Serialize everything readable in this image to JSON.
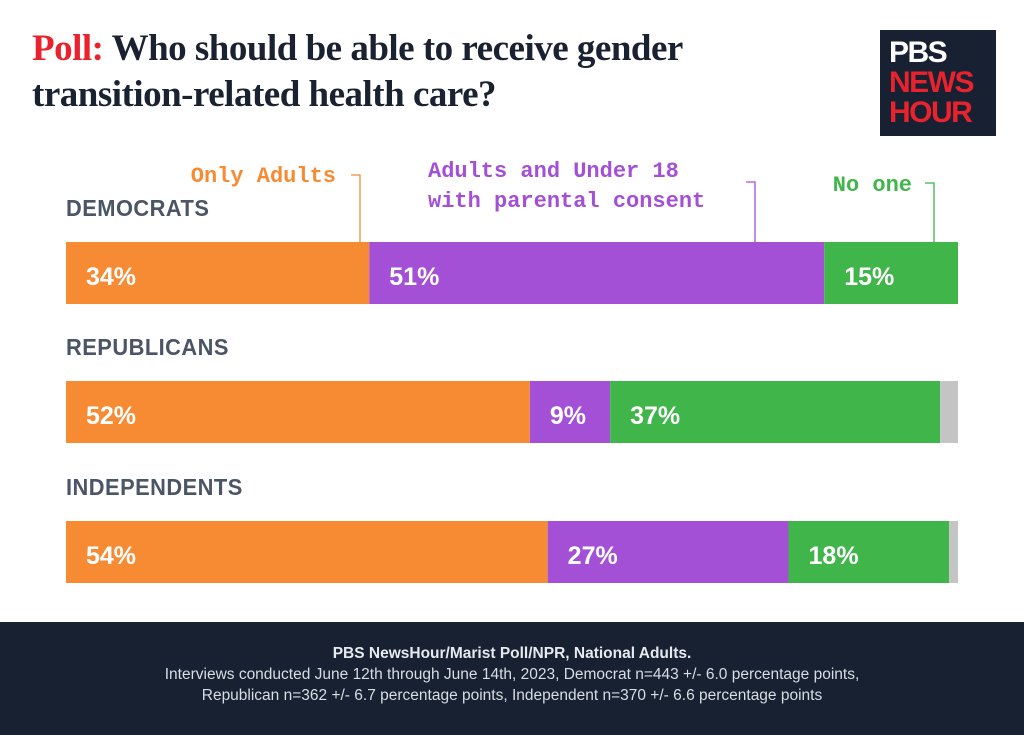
{
  "title": {
    "keyword": "Poll:",
    "text": "Who should be able to receive gender transition-related health care?"
  },
  "logo": {
    "line1": "PBS",
    "line2": "NEWS",
    "line3": "HOUR"
  },
  "chart_data": {
    "type": "bar",
    "orientation": "horizontal",
    "stacked": true,
    "categories": [
      "DEMOCRATS",
      "REPUBLICANS",
      "INDEPENDENTS"
    ],
    "xlim": [
      0,
      100
    ],
    "unit": "%",
    "legend_placement": "top",
    "grid": false,
    "series": [
      {
        "name": "Only Adults",
        "color": "#f68b33",
        "values": [
          34,
          52,
          54
        ],
        "labels": [
          "34%",
          "52%",
          "54%"
        ]
      },
      {
        "name": "Adults and Under 18 with parental consent",
        "color": "#a34fd6",
        "values": [
          51,
          9,
          27
        ],
        "labels": [
          "51%",
          "9%",
          "27%"
        ]
      },
      {
        "name": "No one",
        "color": "#3fb54a",
        "values": [
          15,
          37,
          18
        ],
        "labels": [
          "15%",
          "37%",
          "18%"
        ]
      },
      {
        "color": "#c4c4c4",
        "values": [
          0,
          2,
          1
        ]
      }
    ],
    "legend_lines": [
      [
        "Only Adults"
      ],
      [
        "Adults and Under 18",
        "with parental consent"
      ],
      [
        "No one"
      ]
    ]
  },
  "footer": {
    "source": "PBS NewsHour/Marist Poll/NPR, National Adults.",
    "line2": "Interviews conducted June 12th through June 14th, 2023, Democrat n=443 +/- 6.0 percentage points,",
    "line3": "Republican n=362 +/- 6.7 percentage points, Independent  n=370 +/- 6.6 percentage points"
  }
}
